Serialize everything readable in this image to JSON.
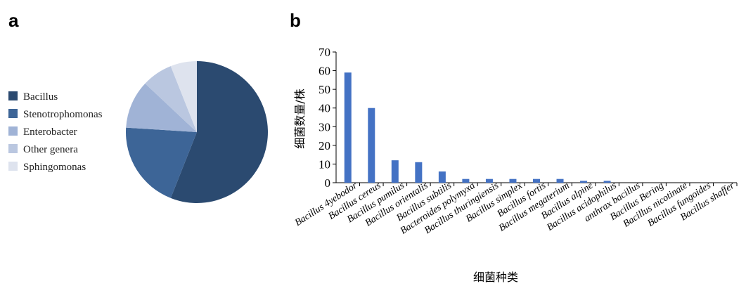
{
  "panels": {
    "a_label": "a",
    "b_label": "b"
  },
  "chart_data": [
    {
      "type": "pie",
      "panel": "a",
      "legend_position": "left",
      "slices": [
        {
          "label": "Bacillus",
          "value": 56,
          "color": "#2b4a70"
        },
        {
          "label": "Stenotrophomonas",
          "value": 20,
          "color": "#3d6597"
        },
        {
          "label": "Enterobacter",
          "value": 11,
          "color": "#a0b3d6"
        },
        {
          "label": "Other genera",
          "value": 7,
          "color": "#bac7e0"
        },
        {
          "label": "Sphingomonas",
          "value": 6,
          "color": "#dee3ee"
        }
      ]
    },
    {
      "type": "bar",
      "panel": "b",
      "ylabel": "细菌数量/株",
      "xlabel": "细菌种类",
      "ylim": [
        0,
        70
      ],
      "yticks": [
        0,
        10,
        20,
        30,
        40,
        50,
        60,
        70
      ],
      "grid": false,
      "bar_color": "#4472c4",
      "categories": [
        "Bacillus 4yebodor",
        "Bacillus cereus",
        "Bacillus pumilus",
        "Bacillus orientalis",
        "Bacillus subtilis",
        "Bacteroides polymyxa",
        "Bacillus thuringiensis",
        "Bacillus simplex",
        "Bacillus fortis",
        "Bacillus megaterium",
        "Bacillus alpine",
        "Bacillus acidophilus",
        "anthrax bacillus",
        "Bacillus Bering",
        "Bacillus nicotinate",
        "Bacillus fungoides",
        "Bacillus shaffer"
      ],
      "values": [
        59,
        40,
        12,
        11,
        6,
        2,
        2,
        2,
        2,
        2,
        1,
        1,
        0,
        0,
        0,
        0,
        0
      ]
    }
  ]
}
